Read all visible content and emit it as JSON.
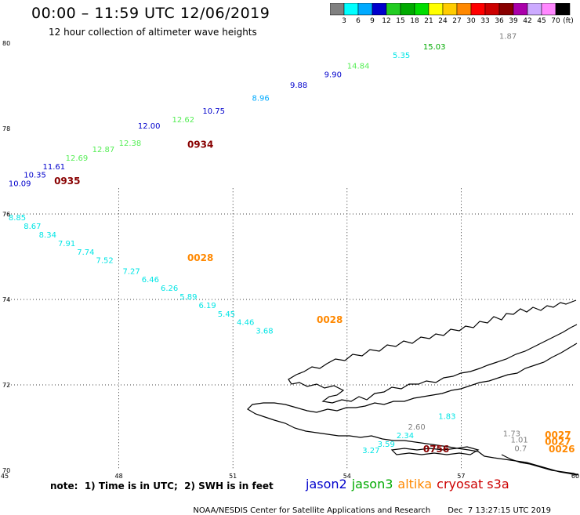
{
  "title": "00:00 – 11:59 UTC 12/06/2019",
  "subtitle": "12 hour collection of altimeter wave heights",
  "colorbar": {
    "unit": "(ft)",
    "ticks": [
      "3",
      "6",
      "9",
      "12",
      "15",
      "18",
      "21",
      "24",
      "27",
      "30",
      "33",
      "36",
      "39",
      "42",
      "45",
      "70"
    ],
    "colors": [
      "#808080",
      "#00ffff",
      "#00aaff",
      "#0000cc",
      "#22cc22",
      "#00aa00",
      "#00dd00",
      "#ffff00",
      "#ffcc00",
      "#ff8800",
      "#ff0000",
      "#cc0000",
      "#880000",
      "#aa00aa",
      "#ccaaff",
      "#ff88ff",
      "#000000"
    ]
  },
  "axes": {
    "lon_labels": [
      "45",
      "48",
      "51",
      "54",
      "57",
      "60"
    ],
    "lat_labels": [
      "70",
      "72",
      "74",
      "76",
      "78",
      "80"
    ],
    "lon_range": [
      45,
      60
    ],
    "lat_range": [
      70,
      80
    ]
  },
  "tracks": [
    {
      "satellite": "jason2",
      "points": [
        {
          "lon": 45.1,
          "lat": 76.65,
          "value": "10.09",
          "color": "#0000cc"
        },
        {
          "lon": 45.5,
          "lat": 76.85,
          "value": "10.35",
          "color": "#0000cc"
        },
        {
          "lon": 46.0,
          "lat": 77.05,
          "value": "11.61",
          "color": "#0000cc"
        },
        {
          "lon": 48.5,
          "lat": 78.0,
          "value": "12.00",
          "color": "#0000cc"
        },
        {
          "lon": 50.2,
          "lat": 78.35,
          "value": "10.75",
          "color": "#0000cc"
        },
        {
          "lon": 52.5,
          "lat": 78.95,
          "value": "9.88",
          "color": "#0000cc"
        },
        {
          "lon": 53.4,
          "lat": 79.2,
          "value": "9.90",
          "color": "#0000cc"
        }
      ]
    },
    {
      "satellite": "jason3",
      "points": [
        {
          "lon": 46.6,
          "lat": 77.25,
          "value": "12.69",
          "color": "#55ee55"
        },
        {
          "lon": 47.3,
          "lat": 77.45,
          "value": "12.87",
          "color": "#55ee55"
        },
        {
          "lon": 48.0,
          "lat": 77.6,
          "value": "12.38",
          "color": "#55ee55"
        },
        {
          "lon": 49.4,
          "lat": 78.15,
          "value": "12.62",
          "color": "#55ee55"
        },
        {
          "lon": 51.5,
          "lat": 78.65,
          "value": "8.96",
          "color": "#00aaff"
        },
        {
          "lon": 54.0,
          "lat": 79.4,
          "value": "14.84",
          "color": "#55ee55"
        },
        {
          "lon": 55.2,
          "lat": 79.65,
          "value": "5.35",
          "color": "#00e5e5"
        },
        {
          "lon": 56.0,
          "lat": 79.85,
          "value": "15.03",
          "color": "#00aa00"
        },
        {
          "lon": 58.0,
          "lat": 80.1,
          "value": "1.87",
          "color": "#808080"
        }
      ]
    },
    {
      "satellite": "altika",
      "points": [
        {
          "lon": 45.1,
          "lat": 75.85,
          "value": "8.85",
          "color": "#00e5e5"
        },
        {
          "lon": 45.5,
          "lat": 75.65,
          "value": "8.67",
          "color": "#00e5e5"
        },
        {
          "lon": 45.9,
          "lat": 75.45,
          "value": "8.34",
          "color": "#00e5e5"
        },
        {
          "lon": 46.4,
          "lat": 75.25,
          "value": "7.91",
          "color": "#00e5e5"
        },
        {
          "lon": 46.9,
          "lat": 75.05,
          "value": "7.74",
          "color": "#00e5e5"
        },
        {
          "lon": 47.4,
          "lat": 74.85,
          "value": "7.52",
          "color": "#00e5e5"
        },
        {
          "lon": 48.1,
          "lat": 74.6,
          "value": "7.27",
          "color": "#00e5e5"
        },
        {
          "lon": 48.6,
          "lat": 74.4,
          "value": "6.46",
          "color": "#00e5e5"
        },
        {
          "lon": 49.1,
          "lat": 74.2,
          "value": "6.26",
          "color": "#00e5e5"
        },
        {
          "lon": 49.6,
          "lat": 74.0,
          "value": "5.89",
          "color": "#00e5e5"
        },
        {
          "lon": 50.1,
          "lat": 73.8,
          "value": "6.19",
          "color": "#00e5e5"
        },
        {
          "lon": 50.6,
          "lat": 73.6,
          "value": "5.45",
          "color": "#00e5e5"
        },
        {
          "lon": 51.1,
          "lat": 73.4,
          "value": "4.46",
          "color": "#00e5e5"
        },
        {
          "lon": 51.6,
          "lat": 73.2,
          "value": "3.68",
          "color": "#00e5e5"
        }
      ]
    },
    {
      "satellite": "cryosat",
      "points": [
        {
          "lon": 56.4,
          "lat": 71.2,
          "value": "1.83",
          "color": "#00e5e5"
        },
        {
          "lon": 55.6,
          "lat": 70.95,
          "value": "2.60",
          "color": "#808080"
        },
        {
          "lon": 55.3,
          "lat": 70.75,
          "value": "2.34",
          "color": "#00e5e5"
        },
        {
          "lon": 54.8,
          "lat": 70.55,
          "value": "3.59",
          "color": "#00e5e5"
        },
        {
          "lon": 54.4,
          "lat": 70.4,
          "value": "3.27",
          "color": "#00e5e5"
        },
        {
          "lon": 58.1,
          "lat": 70.8,
          "value": "1.73",
          "color": "#808080"
        },
        {
          "lon": 58.3,
          "lat": 70.65,
          "value": "1.01",
          "color": "#808080"
        },
        {
          "lon": 58.4,
          "lat": 70.45,
          "value": "0.7",
          "color": "#808080"
        }
      ]
    }
  ],
  "passes": [
    {
      "lon": 46.3,
      "lat": 76.7,
      "time": "0935",
      "color": "#880000"
    },
    {
      "lon": 49.8,
      "lat": 77.55,
      "time": "0934",
      "color": "#880000"
    },
    {
      "lon": 49.8,
      "lat": 74.9,
      "time": "0028",
      "color": "#ff8800"
    },
    {
      "lon": 53.2,
      "lat": 73.45,
      "time": "0028",
      "color": "#ff8800"
    },
    {
      "lon": 56.0,
      "lat": 70.42,
      "time": "0756",
      "color": "#880000"
    },
    {
      "lon": 59.2,
      "lat": 70.75,
      "time": "0027",
      "color": "#ff8800"
    },
    {
      "lon": 59.2,
      "lat": 70.6,
      "time": "0027",
      "color": "#ff8800"
    },
    {
      "lon": 59.3,
      "lat": 70.42,
      "time": "0026",
      "color": "#ff8800"
    }
  ],
  "note": "note:  1) Time is in UTC;  2) SWH is in feet",
  "satellites": [
    {
      "name": "jason2",
      "color": "#0000cc"
    },
    {
      "name": "jason3",
      "color": "#00aa00"
    },
    {
      "name": "altika",
      "color": "#ff8800"
    },
    {
      "name": "cryosat s3a",
      "color": "#cc0000"
    }
  ],
  "footer": {
    "source": "NOAA/NESDIS Center for Satellite Applications and Research",
    "timestamp": "Dec  7 13:27:15 UTC 2019"
  }
}
